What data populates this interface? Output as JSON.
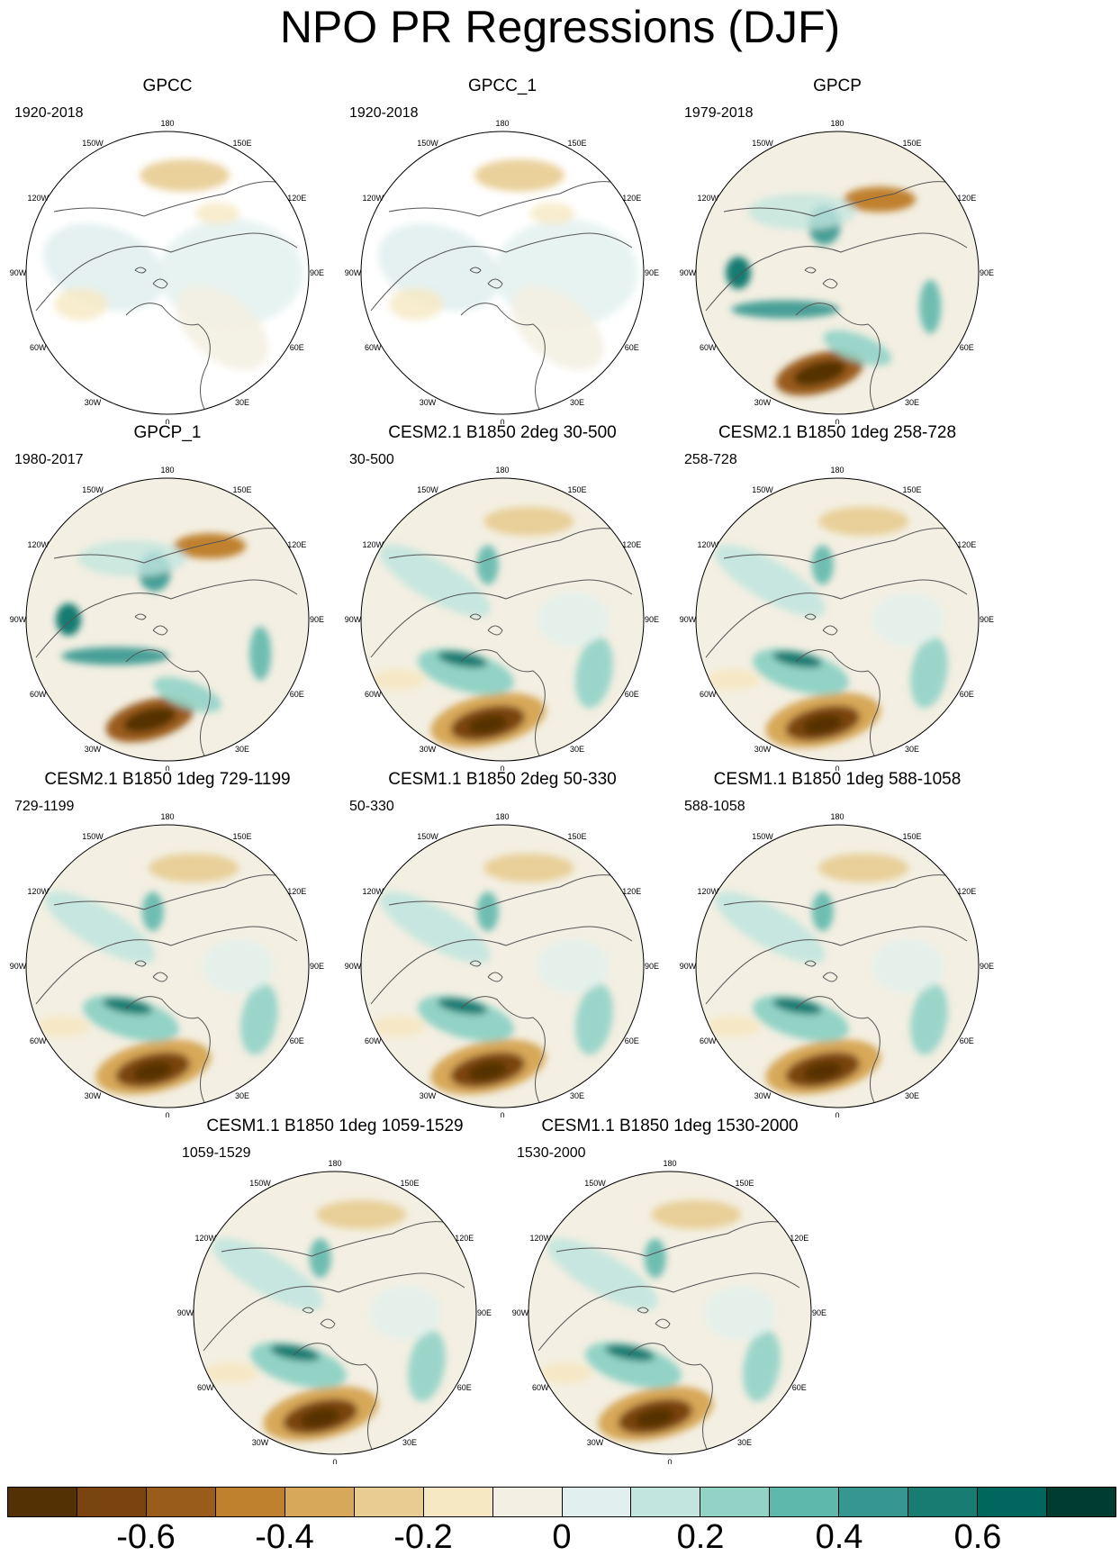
{
  "title": "NPO PR Regressions (DJF)",
  "longitude_labels": [
    "180",
    "150E",
    "120E",
    "90E",
    "60E",
    "30E",
    "0",
    "30W",
    "60W",
    "90W",
    "120W",
    "150W"
  ],
  "colors": {
    "land_outline": "#555555",
    "missing_data": "#ffffff"
  },
  "panels": [
    {
      "title": "GPCC",
      "period": "1920-2018",
      "pattern": "obs_sparse"
    },
    {
      "title": "GPCC_1",
      "period": "1920-2018",
      "pattern": "obs_sparse"
    },
    {
      "title": "GPCP",
      "period": "1979-2018",
      "pattern": "obs_full"
    },
    {
      "title": "GPCP_1",
      "period": "1980-2017",
      "pattern": "obs_full"
    },
    {
      "title": "CESM2.1 B1850 2deg 30-500",
      "period": "30-500",
      "pattern": "model"
    },
    {
      "title": "CESM2.1 B1850 1deg 258-728",
      "period": "258-728",
      "pattern": "model"
    },
    {
      "title": "CESM2.1 B1850 1deg 729-1199",
      "period": "729-1199",
      "pattern": "model"
    },
    {
      "title": "CESM1.1 B1850 2deg 50-330",
      "period": "50-330",
      "pattern": "model"
    },
    {
      "title": "CESM1.1 B1850 1deg 588-1058",
      "period": "588-1058",
      "pattern": "model"
    },
    {
      "title": "CESM1.1 B1850 1deg 1059-1529",
      "period": "1059-1529",
      "pattern": "model"
    },
    {
      "title": "CESM1.1 B1850 1deg 1530-2000",
      "period": "1530-2000",
      "pattern": "model"
    }
  ],
  "colorbar": {
    "colors": [
      "#543005",
      "#7a4410",
      "#9a5c1a",
      "#bf812d",
      "#d7a859",
      "#e8cc91",
      "#f6e8c3",
      "#f3efe2",
      "#e1f0ee",
      "#c2e6df",
      "#92d3c6",
      "#5fb8ac",
      "#35978f",
      "#187c72",
      "#01665e",
      "#003c30"
    ],
    "labels": [
      "-0.6",
      "-0.4",
      "-0.2",
      "0",
      "0.2",
      "0.4",
      "0.6"
    ],
    "label_values": [
      -0.6,
      -0.4,
      -0.2,
      0,
      0.2,
      0.4,
      0.6
    ],
    "min": -0.8,
    "max": 0.8
  }
}
